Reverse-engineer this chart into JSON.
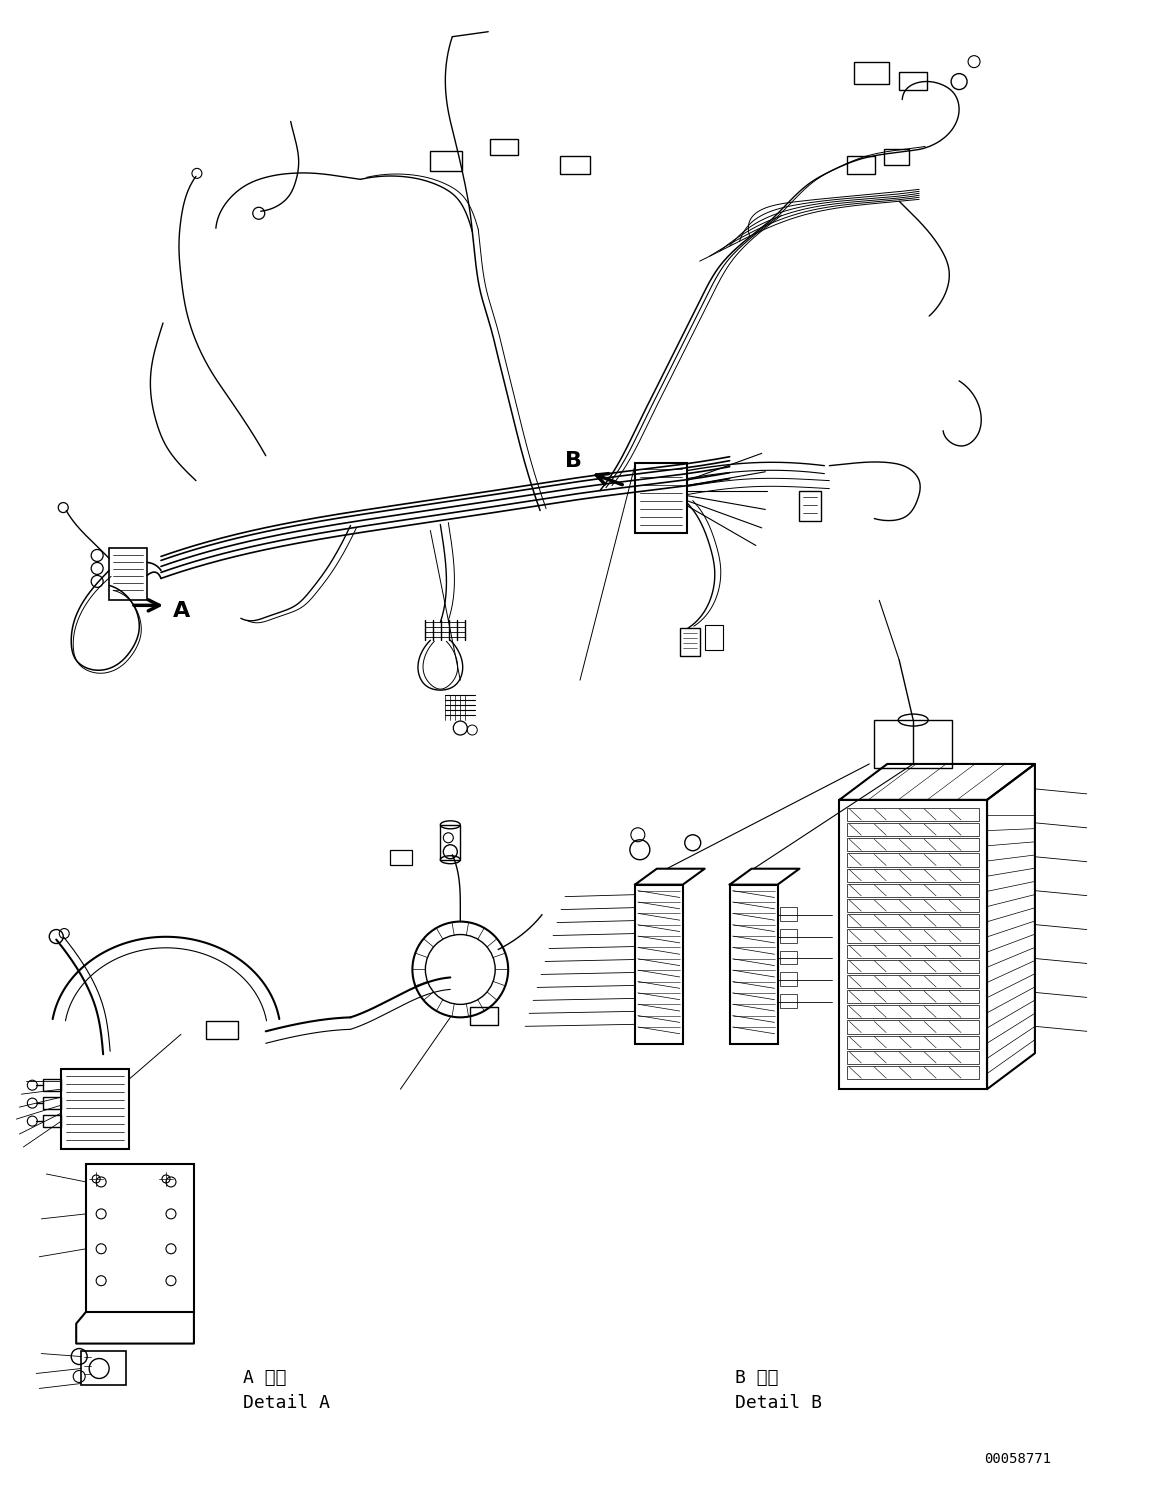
{
  "bg_color": "#ffffff",
  "line_color": "#000000",
  "figsize": [
    11.63,
    14.88
  ],
  "dpi": 100,
  "label_A_kanji": "A 詳細",
  "label_A_roman": "Detail A",
  "label_B_kanji": "B 詳細",
  "label_B_roman": "Detail B",
  "code": "00058771"
}
